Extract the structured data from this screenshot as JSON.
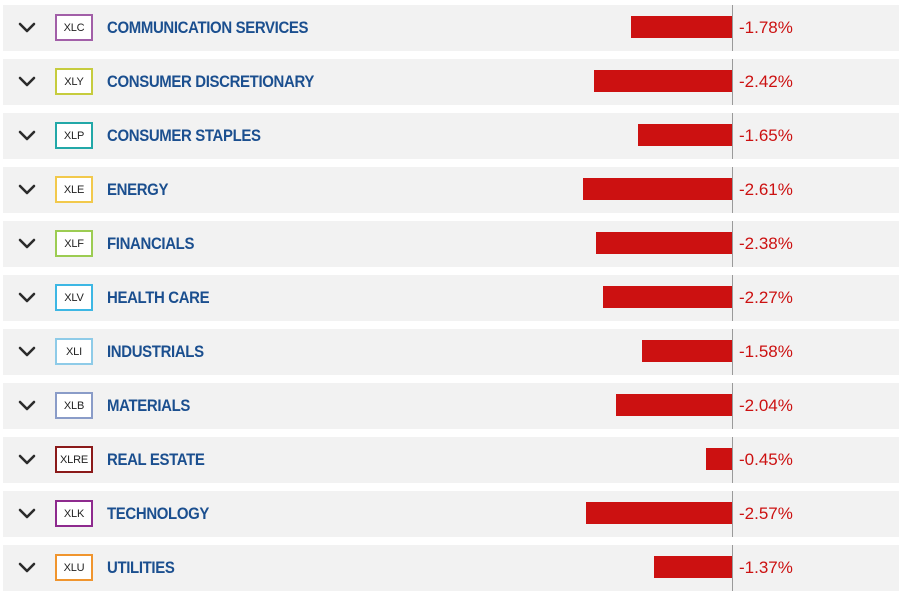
{
  "sectors": [
    {
      "ticker": "XLC",
      "name": "COMMUNICATION SERVICES",
      "change": -1.78,
      "change_label": "-1.78%",
      "badge_color": "#a25fa8"
    },
    {
      "ticker": "XLY",
      "name": "CONSUMER DISCRETIONARY",
      "change": -2.42,
      "change_label": "-2.42%",
      "badge_color": "#c6cc3e"
    },
    {
      "ticker": "XLP",
      "name": "CONSUMER STAPLES",
      "change": -1.65,
      "change_label": "-1.65%",
      "badge_color": "#22a8a8"
    },
    {
      "ticker": "XLE",
      "name": "ENERGY",
      "change": -2.61,
      "change_label": "-2.61%",
      "badge_color": "#f2c94c"
    },
    {
      "ticker": "XLF",
      "name": "FINANCIALS",
      "change": -2.38,
      "change_label": "-2.38%",
      "badge_color": "#9ccc52"
    },
    {
      "ticker": "XLV",
      "name": "HEALTH CARE",
      "change": -2.27,
      "change_label": "-2.27%",
      "badge_color": "#3db7e4"
    },
    {
      "ticker": "XLI",
      "name": "INDUSTRIALS",
      "change": -1.58,
      "change_label": "-1.58%",
      "badge_color": "#8ecbe8"
    },
    {
      "ticker": "XLB",
      "name": "MATERIALS",
      "change": -2.04,
      "change_label": "-2.04%",
      "badge_color": "#8a9cc8"
    },
    {
      "ticker": "XLRE",
      "name": "REAL ESTATE",
      "change": -0.45,
      "change_label": "-0.45%",
      "badge_color": "#8b1a1a"
    },
    {
      "ticker": "XLK",
      "name": "TECHNOLOGY",
      "change": -2.57,
      "change_label": "-2.57%",
      "badge_color": "#8e2a8e"
    },
    {
      "ticker": "XLU",
      "name": "UTILITIES",
      "change": -1.37,
      "change_label": "-1.37%",
      "badge_color": "#f0952e"
    }
  ],
  "icons": {
    "expand": "chevron-down-icon"
  },
  "colors": {
    "negative": "#cc1111",
    "label": "#1b4f8f",
    "row_background": "#f2f2f2"
  }
}
